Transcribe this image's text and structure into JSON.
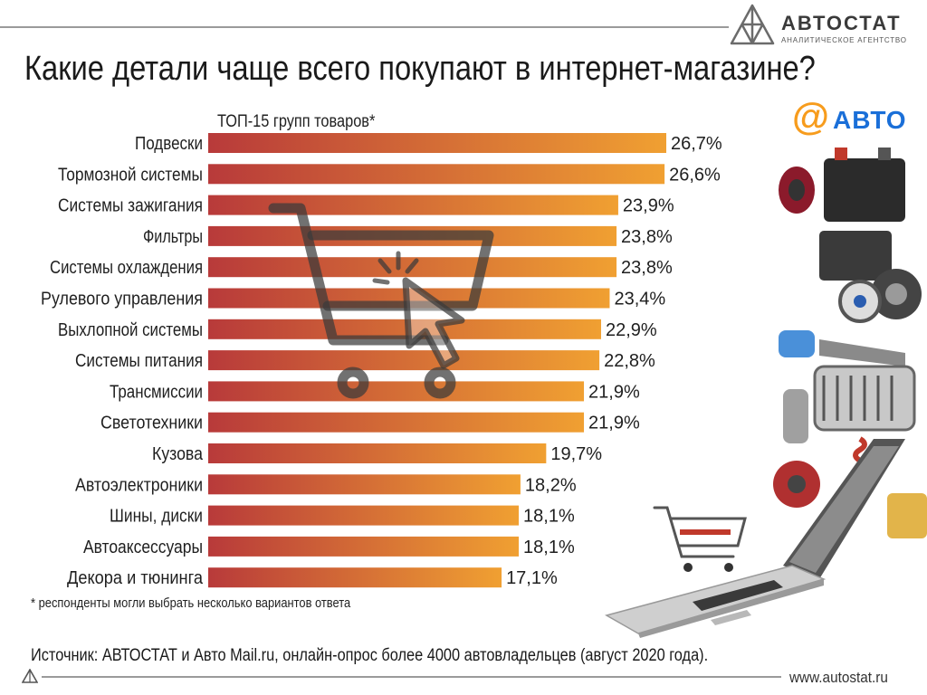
{
  "header": {
    "logo_name": "АВТОСТАТ",
    "logo_sub": "АНАЛИТИЧЕСКОЕ АГЕНТСТВО",
    "partner_logo": {
      "at": "@",
      "text": "АВТО"
    }
  },
  "colors": {
    "bar_start": "#b83a3a",
    "bar_end": "#f0a032",
    "rule": "#9a9a9a",
    "mail_orange": "#f79c1d",
    "mail_blue": "#1a6fd8"
  },
  "chart_data": {
    "type": "bar",
    "orientation": "horizontal",
    "title": "Какие детали чаще всего покупают в интернет-магазине?",
    "subtitle": "ТОП-15 групп товаров*",
    "categories": [
      "Подвески",
      "Тормозной системы",
      "Системы зажигания",
      "Фильтры",
      "Системы охлаждения",
      "Рулевого управления",
      "Выхлопной системы",
      "Системы питания",
      "Трансмиссии",
      "Светотехники",
      "Кузова",
      "Автоэлектроники",
      "Шины, диски",
      "Автоаксессуары",
      "Декора и тюнинга"
    ],
    "values": [
      26.7,
      26.6,
      23.9,
      23.8,
      23.8,
      23.4,
      22.9,
      22.8,
      21.9,
      21.9,
      19.7,
      18.2,
      18.1,
      18.1,
      17.1
    ],
    "value_labels": [
      "26,7%",
      "26,6%",
      "23,9%",
      "23,8%",
      "23,8%",
      "23,4%",
      "22,9%",
      "22,8%",
      "21,9%",
      "21,9%",
      "19,7%",
      "18,2%",
      "18,1%",
      "18,1%",
      "17,1%"
    ],
    "unit": "%",
    "xlim": [
      0,
      26.7
    ],
    "grid": false,
    "legend": "none"
  },
  "footer": {
    "footnote": "* респонденты могли выбрать несколько вариантов ответа",
    "source": "Источник: АВТОСТАТ и Авто Mail.ru, онлайн-опрос более 4000 автовладельцев (август 2020 года).",
    "url": "www.autostat.ru"
  }
}
